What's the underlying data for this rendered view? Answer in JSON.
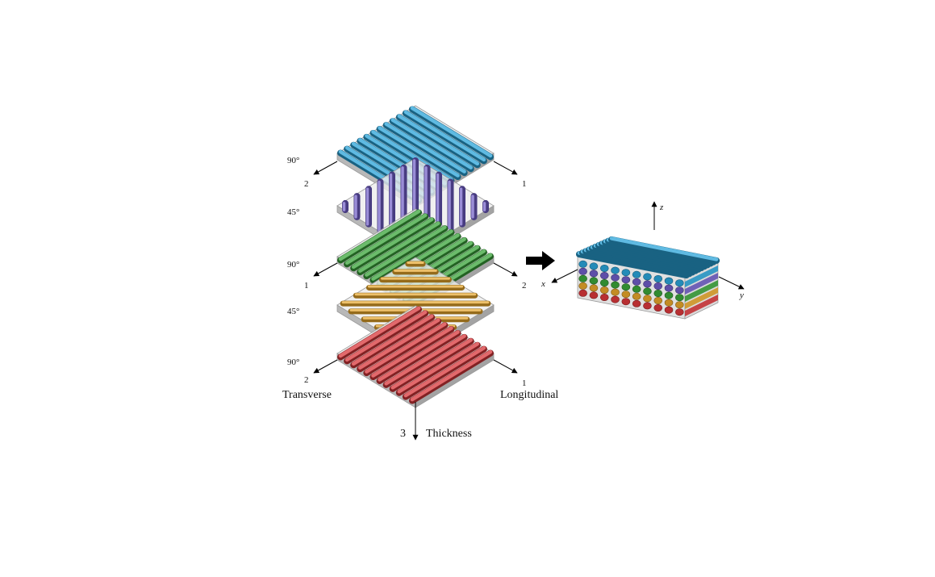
{
  "layers": [
    {
      "angle": "90°",
      "fiber_color": "#2aa3d8",
      "left_axis": "2",
      "right_axis": "1"
    },
    {
      "angle": "45°",
      "fiber_color": "#6f5cc6"
    },
    {
      "angle": "90°",
      "fiber_color": "#3aa43a",
      "left_axis": "1",
      "right_axis": "2"
    },
    {
      "angle": "45°",
      "fiber_color": "#e5a52a"
    },
    {
      "angle": "90°",
      "fiber_color": "#d8373b",
      "left_axis": "2",
      "right_axis": "1"
    }
  ],
  "bottom_labels": {
    "transverse": "Transverse",
    "longitudinal": "Longitudinal",
    "thickness_number": "3",
    "thickness": "Thickness"
  },
  "laminate_axes": {
    "z": "z",
    "x": "x",
    "y": "y"
  },
  "colors": {
    "matrix": "#d9d9d9",
    "matrix_edge": "#9a9a9a",
    "arrow": "#000000"
  }
}
